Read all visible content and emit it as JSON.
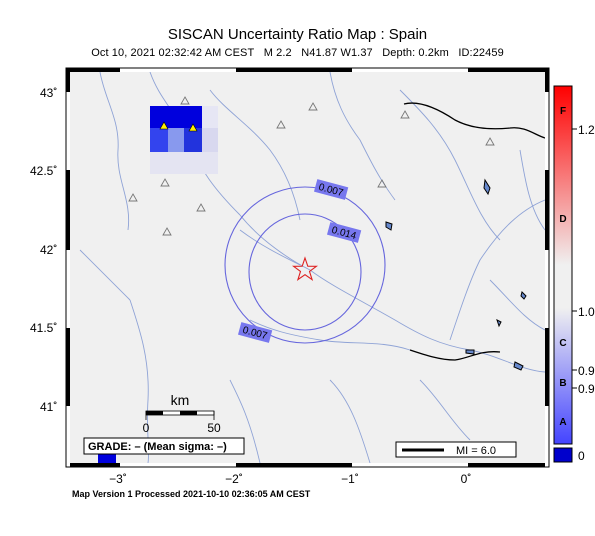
{
  "title": "SISCAN Uncertainty Ratio Map : Spain",
  "event_line": {
    "datetime": "Oct 10, 2021 02:32:42 AM CEST",
    "magnitude": "M 2.2",
    "location": "N41.87 W1.37",
    "depth": "Depth: 0.2km",
    "id": "ID:22459"
  },
  "footer": "Map Version 1 Processed 2021-10-10 02:36:05 AM CEST",
  "grade_box": "GRADE: – (Mean sigma: –)",
  "mi_box": "MI = 6.0",
  "scale_bar": {
    "unit": "km",
    "ticks": [
      "0",
      "50"
    ]
  },
  "axes": {
    "lat_ticks": [
      "43˚",
      "42.5˚",
      "42˚",
      "41.5˚",
      "41˚"
    ],
    "lon_ticks": [
      "−3˚",
      "−2˚",
      "−1˚",
      "0˚"
    ]
  },
  "contours": [
    {
      "label": "0.007",
      "color": "#6666dd"
    },
    {
      "label": "0.014",
      "color": "#6666dd"
    },
    {
      "label": "0.007",
      "color": "#6666dd"
    }
  ],
  "colorbar": {
    "letters": [
      "F",
      "D",
      "C",
      "B",
      "A"
    ],
    "values": [
      "1.2",
      "1.0",
      "0.9",
      "0.9",
      "0"
    ],
    "top_color": "#ff0000",
    "mid_color": "#f0f0f0",
    "bottom_color": "#0000cc"
  },
  "colors": {
    "land": "#f0f0f0",
    "rivers": "#8fa3d6",
    "epicenter": "#dd2222",
    "station": "#ffee00",
    "high_uncertainty": "#0000dd"
  }
}
